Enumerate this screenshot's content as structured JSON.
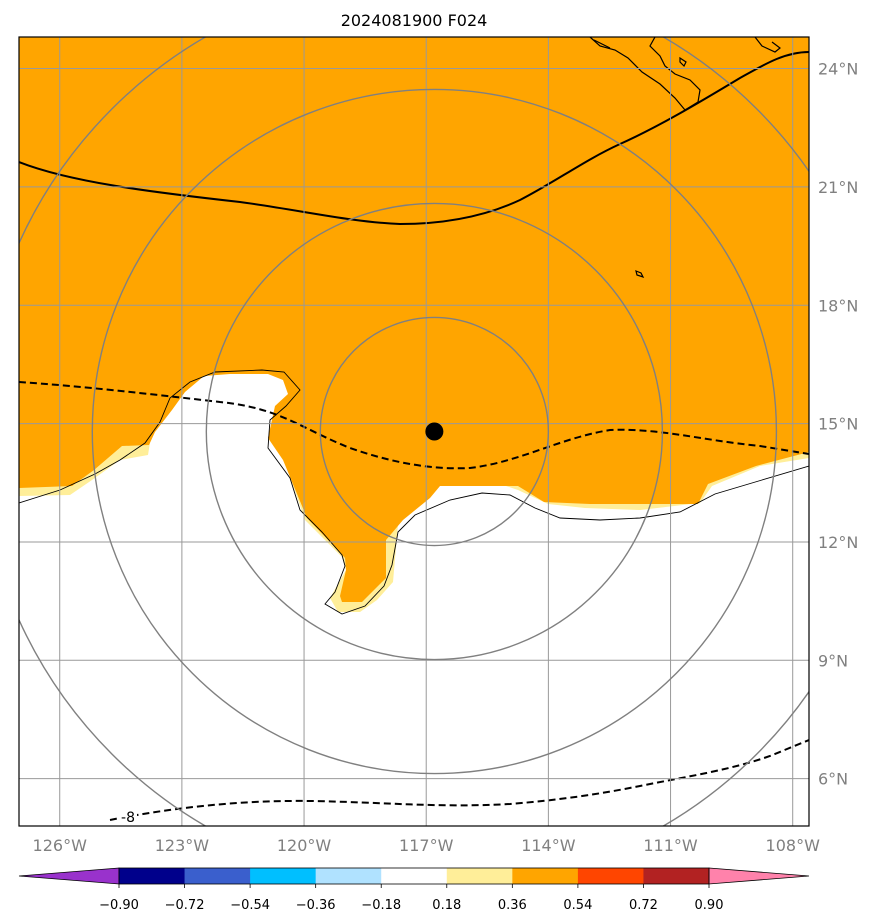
{
  "title": "2024081900 F024",
  "map": {
    "lon_range": [
      -127,
      -107.6
    ],
    "lat_range": [
      4.8,
      24.8
    ],
    "lon_ticks": [
      {
        "value": -126,
        "label": "126°W"
      },
      {
        "value": -123,
        "label": "123°W"
      },
      {
        "value": -120,
        "label": "120°W"
      },
      {
        "value": -117,
        "label": "117°W"
      },
      {
        "value": -114,
        "label": "114°W"
      },
      {
        "value": -111,
        "label": "111°W"
      },
      {
        "value": -108,
        "label": "108°W"
      }
    ],
    "lat_ticks": [
      {
        "value": 24,
        "label": "24°N"
      },
      {
        "value": 21,
        "label": "21°N"
      },
      {
        "value": 18,
        "label": "18°N"
      },
      {
        "value": 15,
        "label": "15°N"
      },
      {
        "value": 12,
        "label": "12°N"
      },
      {
        "value": 9,
        "label": "9°N"
      },
      {
        "value": 6,
        "label": "6°N"
      }
    ],
    "storm_center": {
      "lon": -116.8,
      "lat": 14.8
    },
    "range_rings_deg": [
      2.8,
      5.6,
      8.4,
      11.2
    ],
    "fill_colors": {
      "orange": "#ffa500",
      "light_yellow": "#ffee99",
      "white": "#ffffff"
    },
    "contour_label": "-8"
  },
  "colorbar": {
    "colors": [
      "#9932cc",
      "#00008b",
      "#3a5fcd",
      "#00bfff",
      "#b0e2ff",
      "#ffffff",
      "#ffee99",
      "#ffa500",
      "#ff4500",
      "#b22222",
      "#ff82ab"
    ],
    "labels": [
      "−0.90",
      "−0.72",
      "−0.54",
      "−0.36",
      "−0.18",
      "0.18",
      "0.36",
      "0.54",
      "0.72",
      "0.90"
    ]
  }
}
